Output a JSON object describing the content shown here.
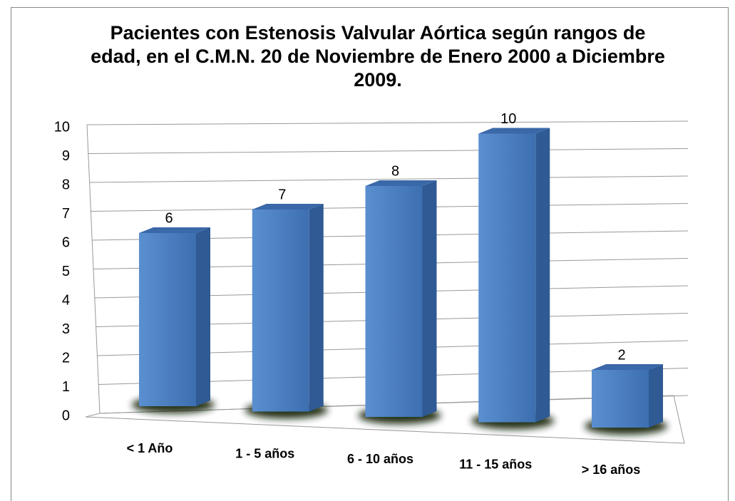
{
  "chart_data": {
    "type": "bar3d",
    "title": "Pacientes con Estenosis Valvular Aórtica según rangos de edad, en el C.M.N. 20 de Noviembre de Enero 2000 a Diciembre 2009.",
    "categories": [
      "< 1 Año",
      "1 - 5 años",
      "6 - 10 años",
      "11 - 15 años",
      "> 16 años"
    ],
    "values": [
      6,
      7,
      8,
      10,
      2
    ],
    "color": "#4f81bd",
    "ylim": [
      0,
      10
    ],
    "yticks": [
      0,
      1,
      2,
      3,
      4,
      5,
      6,
      7,
      8,
      9,
      10
    ],
    "grid": true
  }
}
